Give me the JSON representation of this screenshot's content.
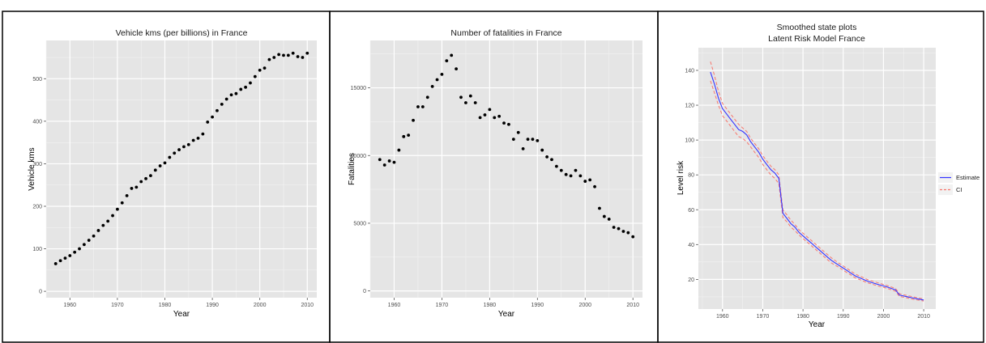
{
  "chart_data": [
    {
      "type": "scatter",
      "title": "Vehicle kms (per billions) in France",
      "xlabel": "Year",
      "ylabel": "Vehicle kms",
      "xlim": [
        1955,
        2012
      ],
      "ylim": [
        -15,
        590
      ],
      "x_ticks": [
        1960,
        1970,
        1980,
        1990,
        2000,
        2010
      ],
      "x_tick_labels": [
        "1960",
        "1970",
        "1980",
        "1990",
        "2000",
        "2010"
      ],
      "y_ticks": [
        0,
        100,
        200,
        300,
        400,
        500
      ],
      "y_tick_labels": [
        "0",
        "100",
        "200",
        "300",
        "400",
        "500"
      ],
      "grid": true,
      "point_color": "#000000",
      "x": [
        1957,
        1958,
        1959,
        1960,
        1961,
        1962,
        1963,
        1964,
        1965,
        1966,
        1967,
        1968,
        1969,
        1970,
        1971,
        1972,
        1973,
        1974,
        1975,
        1976,
        1977,
        1978,
        1979,
        1980,
        1981,
        1982,
        1983,
        1984,
        1985,
        1986,
        1987,
        1988,
        1989,
        1990,
        1991,
        1992,
        1993,
        1994,
        1995,
        1996,
        1997,
        1998,
        1999,
        2000,
        2001,
        2002,
        2003,
        2004,
        2005,
        2006,
        2007,
        2008,
        2009,
        2010
      ],
      "y": [
        65,
        72,
        78,
        84,
        92,
        100,
        110,
        120,
        130,
        143,
        155,
        165,
        178,
        193,
        208,
        225,
        242,
        245,
        258,
        265,
        272,
        285,
        295,
        302,
        315,
        325,
        333,
        340,
        345,
        355,
        360,
        370,
        398,
        410,
        425,
        440,
        452,
        462,
        465,
        475,
        480,
        490,
        505,
        520,
        525,
        545,
        550,
        557,
        555,
        555,
        560,
        552,
        550,
        560
      ]
    },
    {
      "type": "scatter",
      "title": "Number of fatalities in France",
      "xlabel": "Year",
      "ylabel": "Fatalities",
      "xlim": [
        1955,
        2012
      ],
      "ylim": [
        -500,
        18500
      ],
      "x_ticks": [
        1960,
        1970,
        1980,
        1990,
        2000,
        2010
      ],
      "x_tick_labels": [
        "1960",
        "1970",
        "1980",
        "1990",
        "2000",
        "2010"
      ],
      "y_ticks": [
        0,
        5000,
        10000,
        15000
      ],
      "y_tick_labels": [
        "0",
        "5000",
        "10000",
        "15000"
      ],
      "grid": true,
      "point_color": "#000000",
      "x": [
        1957,
        1958,
        1959,
        1960,
        1961,
        1962,
        1963,
        1964,
        1965,
        1966,
        1967,
        1968,
        1969,
        1970,
        1971,
        1972,
        1973,
        1974,
        1975,
        1976,
        1977,
        1978,
        1979,
        1980,
        1981,
        1982,
        1983,
        1984,
        1985,
        1986,
        1987,
        1988,
        1989,
        1990,
        1991,
        1992,
        1993,
        1994,
        1995,
        1996,
        1997,
        1998,
        1999,
        2000,
        2001,
        2002,
        2003,
        2004,
        2005,
        2006,
        2007,
        2008,
        2009,
        2010
      ],
      "y": [
        9700,
        9300,
        9600,
        9500,
        10400,
        11400,
        11500,
        12600,
        13600,
        13600,
        14300,
        15100,
        15600,
        16000,
        17000,
        17400,
        16400,
        14300,
        13900,
        14400,
        13900,
        12800,
        13000,
        13400,
        12800,
        12900,
        12400,
        12300,
        11200,
        11700,
        10500,
        11200,
        11200,
        11100,
        10400,
        9900,
        9700,
        9200,
        8900,
        8600,
        8500,
        8900,
        8500,
        8100,
        8200,
        7700,
        6100,
        5500,
        5300,
        4700,
        4600,
        4400,
        4300,
        4000
      ]
    },
    {
      "type": "line",
      "title": "Smoothed state plots",
      "subtitle": "Latent Risk Model France",
      "xlabel": "Year",
      "ylabel": "Level risk",
      "xlim": [
        1954,
        2013
      ],
      "ylim": [
        3,
        153
      ],
      "x_ticks": [
        1960,
        1970,
        1980,
        1990,
        2000,
        2010
      ],
      "x_tick_labels": [
        "1960",
        "1970",
        "1980",
        "1990",
        "2000",
        "2010"
      ],
      "y_ticks": [
        20,
        40,
        60,
        80,
        100,
        120,
        140
      ],
      "y_tick_labels": [
        "20",
        "40",
        "60",
        "80",
        "100",
        "120",
        "140"
      ],
      "grid": true,
      "legend_position": "right",
      "x": [
        1957,
        1958,
        1959,
        1960,
        1961,
        1962,
        1963,
        1964,
        1965,
        1966,
        1967,
        1968,
        1969,
        1970,
        1971,
        1972,
        1973,
        1974,
        1975,
        1976,
        1977,
        1978,
        1979,
        1980,
        1981,
        1982,
        1983,
        1984,
        1985,
        1986,
        1987,
        1988,
        1989,
        1990,
        1991,
        1992,
        1993,
        1994,
        1995,
        1996,
        1997,
        1998,
        1999,
        2000,
        2001,
        2002,
        2003,
        2004,
        2005,
        2006,
        2007,
        2008,
        2009,
        2010
      ],
      "series": [
        {
          "name": "Estimate",
          "color": "#3333ff",
          "dash": "solid",
          "values": [
            139,
            132,
            124,
            118,
            115,
            112,
            109,
            106,
            105,
            103,
            99,
            96,
            93,
            89,
            86,
            83,
            81,
            78,
            58,
            55,
            52,
            50,
            47,
            45,
            43,
            41,
            39,
            37,
            35,
            33,
            31,
            29.5,
            28,
            26.5,
            25,
            23.5,
            22,
            21,
            20,
            19,
            18.3,
            17.6,
            16.9,
            16.3,
            15.6,
            14.8,
            14,
            11,
            10.5,
            10,
            9.5,
            9,
            8.6,
            8.2
          ]
        },
        {
          "name": "CI",
          "color": "#f8766d",
          "dash": "dashed",
          "values_upper": [
            145,
            137,
            128,
            121,
            118,
            115,
            112,
            109,
            107,
            105,
            101,
            98,
            95,
            91,
            88,
            85,
            83,
            80,
            60,
            57,
            54,
            51.5,
            48.5,
            46.5,
            44.5,
            42.5,
            40.5,
            38.5,
            36.5,
            34.5,
            32.5,
            30.8,
            29.2,
            27.7,
            26.2,
            24.6,
            23.1,
            22,
            21,
            19.9,
            19.2,
            18.5,
            17.8,
            17.1,
            16.4,
            15.6,
            14.8,
            11.8,
            11.2,
            10.7,
            10.2,
            9.7,
            9.2,
            8.8
          ],
          "values_lower": [
            134,
            127,
            120,
            114,
            111,
            108,
            105,
            102,
            101,
            99,
            96,
            93,
            90,
            86,
            83,
            80,
            78,
            75,
            55.5,
            53,
            50,
            48,
            45.5,
            43.5,
            41.5,
            39.5,
            37.5,
            35.5,
            33.5,
            31.5,
            29.5,
            28.2,
            26.8,
            25.3,
            23.8,
            22.4,
            20.9,
            20,
            19,
            18.1,
            17.4,
            16.7,
            16,
            15.5,
            14.8,
            14,
            13.2,
            10.2,
            9.8,
            9.3,
            8.8,
            8.3,
            8,
            7.6
          ]
        }
      ]
    }
  ]
}
